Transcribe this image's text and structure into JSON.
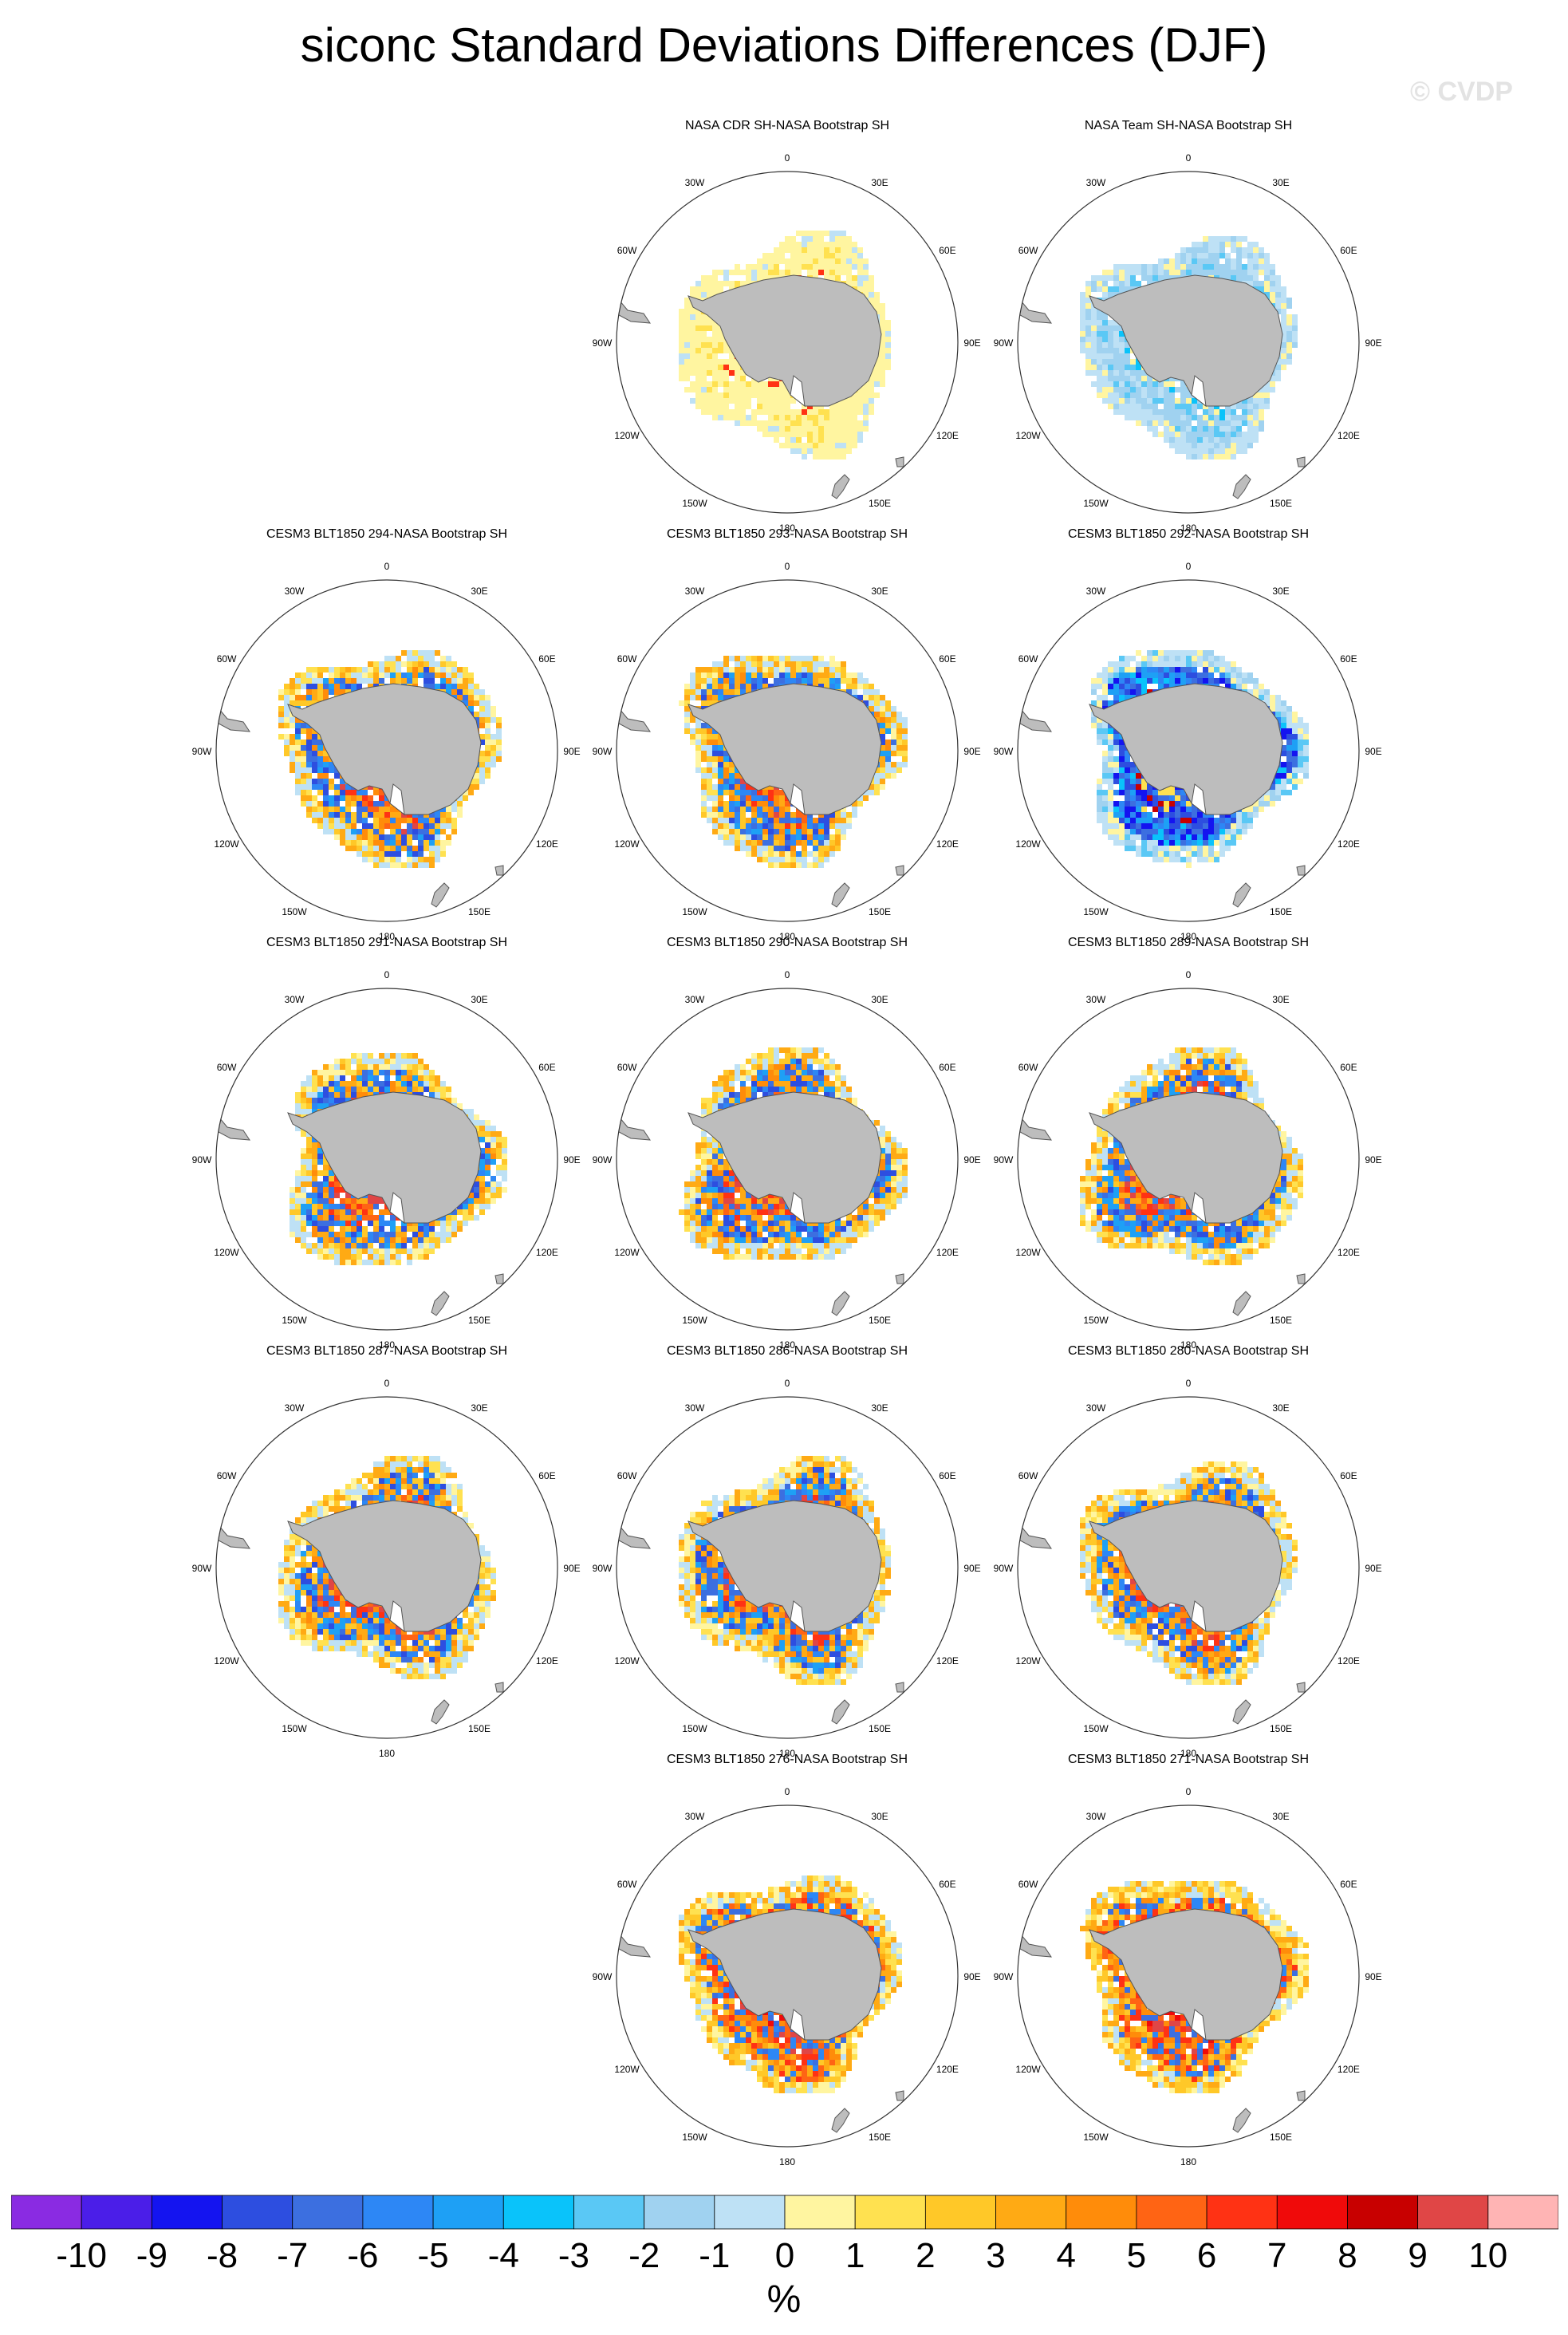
{
  "title": "siconc Standard Deviations Differences (DJF)",
  "watermark": "© CVDP",
  "lon_labels": [
    "0",
    "30E",
    "60E",
    "90E",
    "120E",
    "150E",
    "180",
    "150W",
    "120W",
    "90W",
    "60W",
    "30W"
  ],
  "panels": [
    {
      "id": "p1",
      "title": "NASA CDR SH-NASA Bootstrap SH",
      "pattern": "yellow-light"
    },
    {
      "id": "p2",
      "title": "NASA Team SH-NASA Bootstrap SH",
      "pattern": "blue-light"
    },
    {
      "id": "p3",
      "title": "CESM3 BLT1850 294-NASA Bootstrap SH",
      "pattern": "mixed"
    },
    {
      "id": "p4",
      "title": "CESM3 BLT1850 293-NASA Bootstrap SH",
      "pattern": "mixed"
    },
    {
      "id": "p5",
      "title": "CESM3 BLT1850 292-NASA Bootstrap SH",
      "pattern": "blue"
    },
    {
      "id": "p6",
      "title": "CESM3 BLT1850 291-NASA Bootstrap SH",
      "pattern": "mixed"
    },
    {
      "id": "p7",
      "title": "CESM3 BLT1850 290-NASA Bootstrap SH",
      "pattern": "mixed"
    },
    {
      "id": "p8",
      "title": "CESM3 BLT1850 289-NASA Bootstrap SH",
      "pattern": "mixed"
    },
    {
      "id": "p9",
      "title": "CESM3 BLT1850 287-NASA Bootstrap SH",
      "pattern": "mixed"
    },
    {
      "id": "p10",
      "title": "CESM3 BLT1850 286-NASA Bootstrap SH",
      "pattern": "mixed"
    },
    {
      "id": "p11",
      "title": "CESM3 BLT1850 280-NASA Bootstrap SH",
      "pattern": "mixed"
    },
    {
      "id": "p12",
      "title": "CESM3 BLT1850 276-NASA Bootstrap SH",
      "pattern": "warm"
    },
    {
      "id": "p13",
      "title": "CESM3 BLT1850 271-NASA Bootstrap SH",
      "pattern": "warm"
    }
  ],
  "colorbar": {
    "units": "%",
    "labels": [
      "-10",
      "-9",
      "-8",
      "-7",
      "-6",
      "-5",
      "-4",
      "-3",
      "-2",
      "-1",
      "0",
      "1",
      "2",
      "3",
      "4",
      "5",
      "6",
      "7",
      "8",
      "9",
      "10"
    ],
    "colors": [
      "#8a2be2",
      "#4b1ee8",
      "#1414f0",
      "#2d4ee0",
      "#3c6fe0",
      "#2d87f5",
      "#1ea0f5",
      "#0ac3fa",
      "#5ac8f5",
      "#a0d2f0",
      "#bee1f5",
      "#fff5a0",
      "#ffe150",
      "#ffc828",
      "#ffaa14",
      "#ff8c0a",
      "#ff6414",
      "#ff3214",
      "#f00a0a",
      "#c80000",
      "#e04646",
      "#ffb4b4"
    ]
  }
}
